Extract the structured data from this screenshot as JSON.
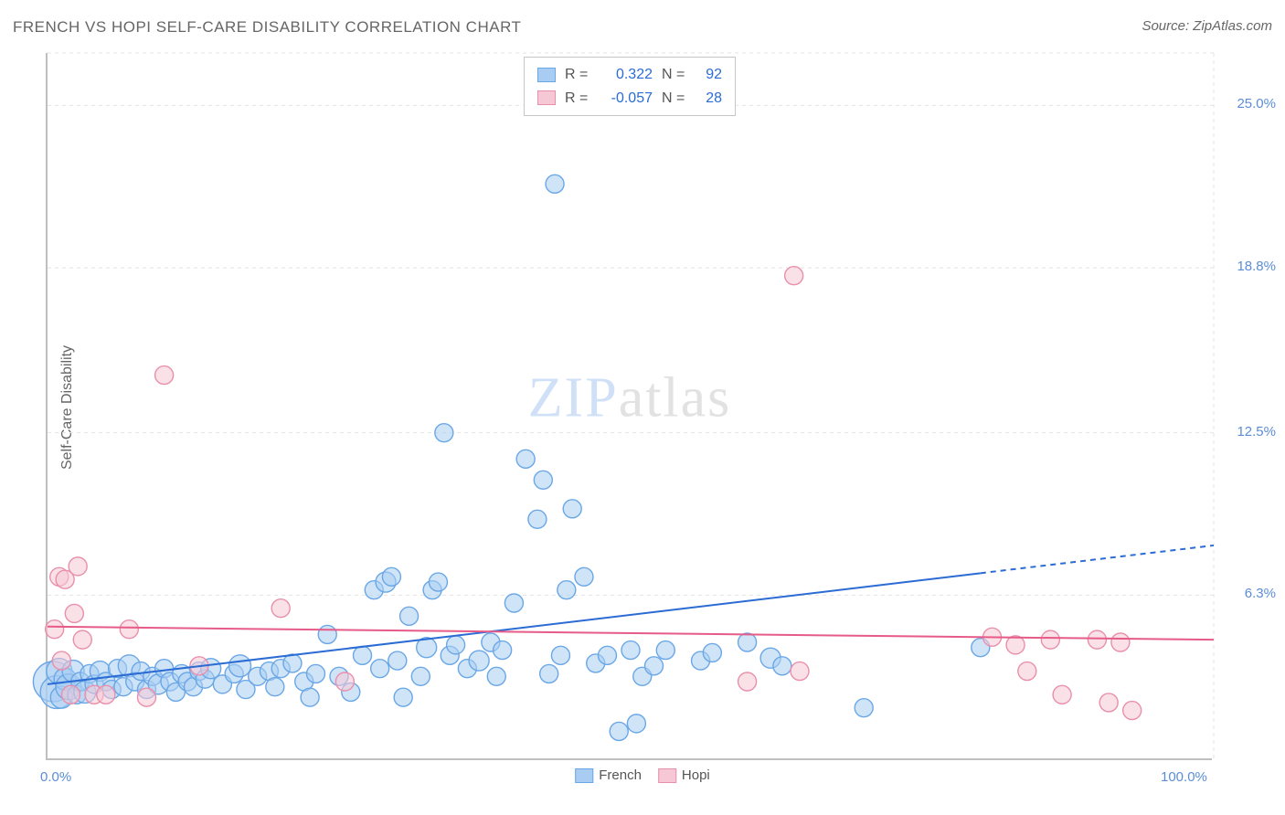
{
  "title": "FRENCH VS HOPI SELF-CARE DISABILITY CORRELATION CHART",
  "source": "Source: ZipAtlas.com",
  "ylabel": "Self-Care Disability",
  "watermark": {
    "zip": "ZIP",
    "atlas": "atlas"
  },
  "chart": {
    "type": "scatter",
    "xlim": [
      0,
      100
    ],
    "ylim": [
      0,
      27
    ],
    "x_ticks": [
      0,
      100
    ],
    "x_tick_labels": [
      "0.0%",
      "100.0%"
    ],
    "y_ticks": [
      6.3,
      12.5,
      18.8,
      25.0
    ],
    "y_tick_labels": [
      "6.3%",
      "12.5%",
      "18.8%",
      "25.0%"
    ],
    "background_color": "#ffffff",
    "grid_color": "#e4e4e4",
    "axis_color": "#bfbfbf",
    "tick_label_color": "#5b8dd6",
    "y_grid_dash": "4,4",
    "series": [
      {
        "name": "French",
        "fill": "#a9cdf2",
        "stroke": "#6aa7e6",
        "fill_opacity": 0.55,
        "marker_radius": 9,
        "trend": {
          "y_at_x0": 2.9,
          "y_at_x100": 8.2,
          "solid_until_x": 80,
          "color": "#2b6cd4",
          "width": 2
        },
        "points": [
          [
            0.5,
            3.0,
            22
          ],
          [
            0.8,
            2.6,
            18
          ],
          [
            1.0,
            3.4,
            14
          ],
          [
            1.2,
            2.4,
            12
          ],
          [
            1.5,
            3.1,
            12
          ],
          [
            1.8,
            2.8,
            14
          ],
          [
            2.2,
            3.4,
            12
          ],
          [
            2.5,
            2.5,
            10
          ],
          [
            2.8,
            3.0,
            10
          ],
          [
            3.2,
            2.6,
            12
          ],
          [
            3.6,
            3.3,
            10
          ],
          [
            4.0,
            2.9,
            10
          ],
          [
            4.5,
            3.4,
            11
          ],
          [
            5.0,
            3.0,
            10
          ],
          [
            5.5,
            2.7,
            10
          ],
          [
            6.0,
            3.5,
            10
          ],
          [
            6.5,
            2.8,
            10
          ],
          [
            7.0,
            3.6,
            12
          ],
          [
            7.5,
            3.0,
            10
          ],
          [
            8.0,
            3.4,
            10
          ],
          [
            8.5,
            2.7,
            10
          ],
          [
            9.0,
            3.2,
            10
          ],
          [
            9.5,
            2.9,
            11
          ],
          [
            10.0,
            3.5,
            10
          ],
          [
            10.5,
            3.0,
            10
          ],
          [
            11.0,
            2.6,
            10
          ],
          [
            11.5,
            3.3,
            10
          ],
          [
            12.0,
            3.0,
            10
          ],
          [
            12.5,
            2.8,
            10
          ],
          [
            13.0,
            3.4,
            10
          ],
          [
            13.5,
            3.1,
            10
          ],
          [
            14.0,
            3.5,
            11
          ],
          [
            15.0,
            2.9,
            10
          ],
          [
            16.0,
            3.3,
            10
          ],
          [
            16.5,
            3.6,
            12
          ],
          [
            17.0,
            2.7,
            10
          ],
          [
            18.0,
            3.2,
            10
          ],
          [
            19.0,
            3.4,
            10
          ],
          [
            19.5,
            2.8,
            10
          ],
          [
            20.0,
            3.5,
            10
          ],
          [
            21.0,
            3.7,
            10
          ],
          [
            22.0,
            3.0,
            10
          ],
          [
            22.5,
            2.4,
            10
          ],
          [
            23.0,
            3.3,
            10
          ],
          [
            24.0,
            4.8,
            10
          ],
          [
            25.0,
            3.2,
            10
          ],
          [
            26.0,
            2.6,
            10
          ],
          [
            27.0,
            4.0,
            10
          ],
          [
            28.0,
            6.5,
            10
          ],
          [
            28.5,
            3.5,
            10
          ],
          [
            29.0,
            6.8,
            11
          ],
          [
            29.5,
            7.0,
            10
          ],
          [
            30.0,
            3.8,
            10
          ],
          [
            30.5,
            2.4,
            10
          ],
          [
            31.0,
            5.5,
            10
          ],
          [
            32.0,
            3.2,
            10
          ],
          [
            32.5,
            4.3,
            11
          ],
          [
            33.0,
            6.5,
            10
          ],
          [
            33.5,
            6.8,
            10
          ],
          [
            34.0,
            12.5,
            10
          ],
          [
            34.5,
            4.0,
            10
          ],
          [
            35.0,
            4.4,
            10
          ],
          [
            36.0,
            3.5,
            10
          ],
          [
            37.0,
            3.8,
            11
          ],
          [
            38.0,
            4.5,
            10
          ],
          [
            38.5,
            3.2,
            10
          ],
          [
            39.0,
            4.2,
            10
          ],
          [
            40.0,
            6.0,
            10
          ],
          [
            41.0,
            11.5,
            10
          ],
          [
            42.0,
            9.2,
            10
          ],
          [
            42.5,
            10.7,
            10
          ],
          [
            43.0,
            3.3,
            10
          ],
          [
            43.5,
            22.0,
            10
          ],
          [
            44.0,
            4.0,
            10
          ],
          [
            44.5,
            6.5,
            10
          ],
          [
            45.0,
            9.6,
            10
          ],
          [
            46.0,
            7.0,
            10
          ],
          [
            47.0,
            3.7,
            10
          ],
          [
            48.0,
            4.0,
            10
          ],
          [
            49.0,
            1.1,
            10
          ],
          [
            50.0,
            4.2,
            10
          ],
          [
            50.5,
            1.4,
            10
          ],
          [
            51.0,
            3.2,
            10
          ],
          [
            52.0,
            3.6,
            10
          ],
          [
            53.0,
            4.2,
            10
          ],
          [
            56.0,
            3.8,
            10
          ],
          [
            57.0,
            4.1,
            10
          ],
          [
            60.0,
            4.5,
            10
          ],
          [
            62.0,
            3.9,
            11
          ],
          [
            63.0,
            3.6,
            10
          ],
          [
            70.0,
            2.0,
            10
          ],
          [
            80.0,
            4.3,
            10
          ]
        ]
      },
      {
        "name": "Hopi",
        "fill": "#f6c8d6",
        "stroke": "#e98fab",
        "fill_opacity": 0.55,
        "marker_radius": 9,
        "trend": {
          "y_at_x0": 5.1,
          "y_at_x100": 4.6,
          "solid_until_x": 100,
          "color": "#e65b88",
          "width": 2
        },
        "points": [
          [
            0.6,
            5.0,
            10
          ],
          [
            1.0,
            7.0,
            10
          ],
          [
            1.2,
            3.8,
            10
          ],
          [
            1.5,
            6.9,
            10
          ],
          [
            2.0,
            2.5,
            10
          ],
          [
            2.3,
            5.6,
            10
          ],
          [
            2.6,
            7.4,
            10
          ],
          [
            3.0,
            4.6,
            10
          ],
          [
            4.0,
            2.5,
            10
          ],
          [
            5.0,
            2.5,
            10
          ],
          [
            7.0,
            5.0,
            10
          ],
          [
            8.5,
            2.4,
            10
          ],
          [
            10.0,
            14.7,
            10
          ],
          [
            13.0,
            3.6,
            10
          ],
          [
            20.0,
            5.8,
            10
          ],
          [
            25.5,
            3.0,
            10
          ],
          [
            60.0,
            3.0,
            10
          ],
          [
            64.0,
            18.5,
            10
          ],
          [
            64.5,
            3.4,
            10
          ],
          [
            81.0,
            4.7,
            10
          ],
          [
            83.0,
            4.4,
            10
          ],
          [
            84.0,
            3.4,
            10
          ],
          [
            86.0,
            4.6,
            10
          ],
          [
            87.0,
            2.5,
            10
          ],
          [
            90.0,
            4.6,
            10
          ],
          [
            91.0,
            2.2,
            10
          ],
          [
            92.0,
            4.5,
            10
          ],
          [
            93.0,
            1.9,
            10
          ]
        ]
      }
    ],
    "stats": [
      {
        "r": "0.322",
        "n": "92",
        "series_idx": 0
      },
      {
        "r": "-0.057",
        "n": "28",
        "series_idx": 1
      }
    ],
    "x_legend": [
      {
        "label": "French",
        "series_idx": 0
      },
      {
        "label": "Hopi",
        "series_idx": 1
      }
    ]
  },
  "title_fontsize": 17,
  "label_fontsize": 16,
  "tick_fontsize": 15
}
